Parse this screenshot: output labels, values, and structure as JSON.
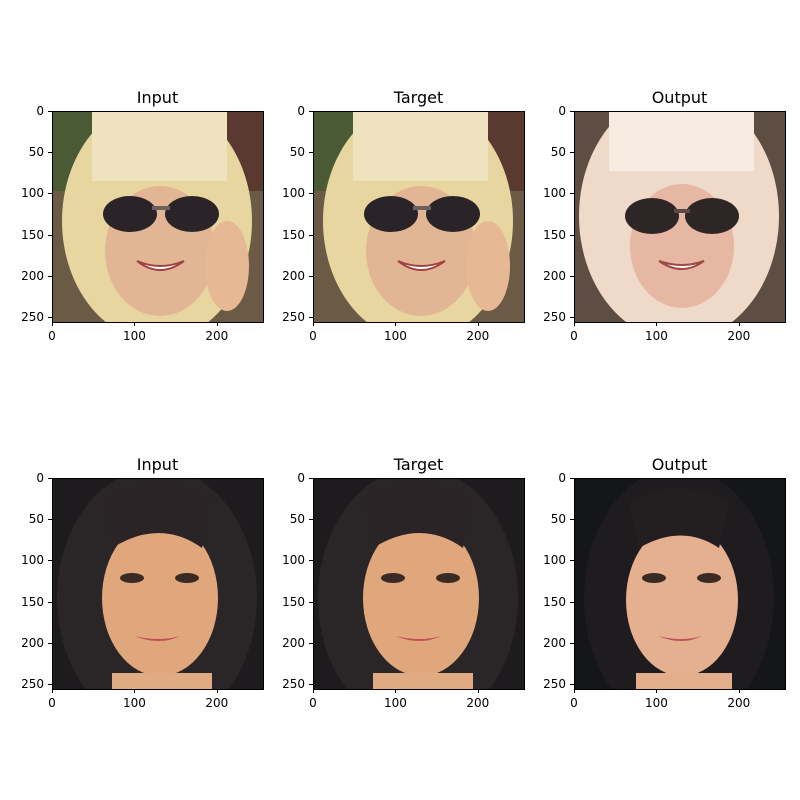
{
  "rows": [
    {
      "panels": [
        {
          "title": "Input",
          "photo": "face-blonde-sunglasses"
        },
        {
          "title": "Target",
          "photo": "face-blonde-sunglasses"
        },
        {
          "title": "Output",
          "photo": "face-blonde-sunglasses-generated"
        }
      ]
    },
    {
      "panels": [
        {
          "title": "Input",
          "photo": "face-dark-hair"
        },
        {
          "title": "Target",
          "photo": "face-dark-hair"
        },
        {
          "title": "Output",
          "photo": "face-dark-hair-generated"
        }
      ]
    }
  ],
  "axis": {
    "yticks": [
      "0",
      "50",
      "100",
      "150",
      "200",
      "250"
    ],
    "xticks": [
      "0",
      "100",
      "200"
    ]
  }
}
